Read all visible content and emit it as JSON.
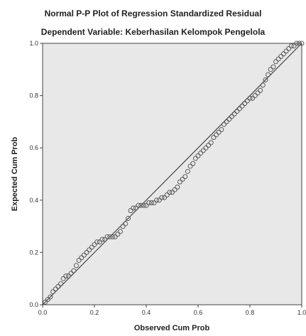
{
  "chart_data": {
    "type": "scatter",
    "title": "Normal P-P Plot of Regression Standardized Residual",
    "subtitle": "Dependent Variable: Keberhasilan Kelompok Pengelola",
    "xlabel": "Observed Cum Prob",
    "ylabel": "Expected Cum Prob",
    "xlim": [
      0,
      1
    ],
    "ylim": [
      0,
      1
    ],
    "x_ticks": [
      "0.0",
      "0.2",
      "0.4",
      "0.6",
      "0.8",
      "1.0"
    ],
    "y_ticks": [
      "0.0",
      "0.2",
      "0.4",
      "0.6",
      "0.8",
      "1.0"
    ],
    "reference_line": "diagonal",
    "grid": false,
    "background": "#e8e8e8",
    "points": [
      [
        0.01,
        0.01
      ],
      [
        0.02,
        0.02
      ],
      [
        0.03,
        0.03
      ],
      [
        0.04,
        0.05
      ],
      [
        0.05,
        0.06
      ],
      [
        0.06,
        0.07
      ],
      [
        0.07,
        0.08
      ],
      [
        0.08,
        0.1
      ],
      [
        0.09,
        0.11
      ],
      [
        0.1,
        0.11
      ],
      [
        0.11,
        0.12
      ],
      [
        0.12,
        0.13
      ],
      [
        0.13,
        0.15
      ],
      [
        0.14,
        0.17
      ],
      [
        0.15,
        0.18
      ],
      [
        0.16,
        0.19
      ],
      [
        0.17,
        0.2
      ],
      [
        0.18,
        0.21
      ],
      [
        0.19,
        0.22
      ],
      [
        0.2,
        0.23
      ],
      [
        0.21,
        0.24
      ],
      [
        0.22,
        0.24
      ],
      [
        0.23,
        0.25
      ],
      [
        0.24,
        0.25
      ],
      [
        0.25,
        0.26
      ],
      [
        0.26,
        0.26
      ],
      [
        0.27,
        0.26
      ],
      [
        0.28,
        0.26
      ],
      [
        0.29,
        0.27
      ],
      [
        0.3,
        0.28
      ],
      [
        0.31,
        0.3
      ],
      [
        0.32,
        0.31
      ],
      [
        0.33,
        0.33
      ],
      [
        0.34,
        0.36
      ],
      [
        0.35,
        0.37
      ],
      [
        0.36,
        0.37
      ],
      [
        0.37,
        0.38
      ],
      [
        0.38,
        0.38
      ],
      [
        0.39,
        0.38
      ],
      [
        0.4,
        0.38
      ],
      [
        0.41,
        0.39
      ],
      [
        0.42,
        0.39
      ],
      [
        0.43,
        0.39
      ],
      [
        0.44,
        0.4
      ],
      [
        0.45,
        0.4
      ],
      [
        0.46,
        0.41
      ],
      [
        0.47,
        0.41
      ],
      [
        0.48,
        0.42
      ],
      [
        0.49,
        0.43
      ],
      [
        0.5,
        0.43
      ],
      [
        0.51,
        0.44
      ],
      [
        0.52,
        0.45
      ],
      [
        0.53,
        0.47
      ],
      [
        0.54,
        0.48
      ],
      [
        0.55,
        0.49
      ],
      [
        0.56,
        0.51
      ],
      [
        0.57,
        0.53
      ],
      [
        0.58,
        0.54
      ],
      [
        0.59,
        0.56
      ],
      [
        0.6,
        0.57
      ],
      [
        0.61,
        0.58
      ],
      [
        0.62,
        0.59
      ],
      [
        0.63,
        0.6
      ],
      [
        0.64,
        0.61
      ],
      [
        0.65,
        0.62
      ],
      [
        0.66,
        0.64
      ],
      [
        0.67,
        0.65
      ],
      [
        0.68,
        0.66
      ],
      [
        0.69,
        0.67
      ],
      [
        0.7,
        0.69
      ],
      [
        0.71,
        0.7
      ],
      [
        0.72,
        0.71
      ],
      [
        0.73,
        0.72
      ],
      [
        0.74,
        0.73
      ],
      [
        0.75,
        0.74
      ],
      [
        0.76,
        0.75
      ],
      [
        0.77,
        0.76
      ],
      [
        0.78,
        0.77
      ],
      [
        0.79,
        0.78
      ],
      [
        0.8,
        0.79
      ],
      [
        0.81,
        0.79
      ],
      [
        0.82,
        0.8
      ],
      [
        0.83,
        0.81
      ],
      [
        0.84,
        0.82
      ],
      [
        0.85,
        0.84
      ],
      [
        0.86,
        0.86
      ],
      [
        0.87,
        0.88
      ],
      [
        0.88,
        0.9
      ],
      [
        0.89,
        0.91
      ],
      [
        0.9,
        0.93
      ],
      [
        0.91,
        0.94
      ],
      [
        0.92,
        0.95
      ],
      [
        0.93,
        0.96
      ],
      [
        0.94,
        0.97
      ],
      [
        0.95,
        0.98
      ],
      [
        0.96,
        0.99
      ],
      [
        0.97,
        0.99
      ],
      [
        0.98,
        1.0
      ],
      [
        0.99,
        1.0
      ],
      [
        1.0,
        1.0
      ]
    ]
  }
}
